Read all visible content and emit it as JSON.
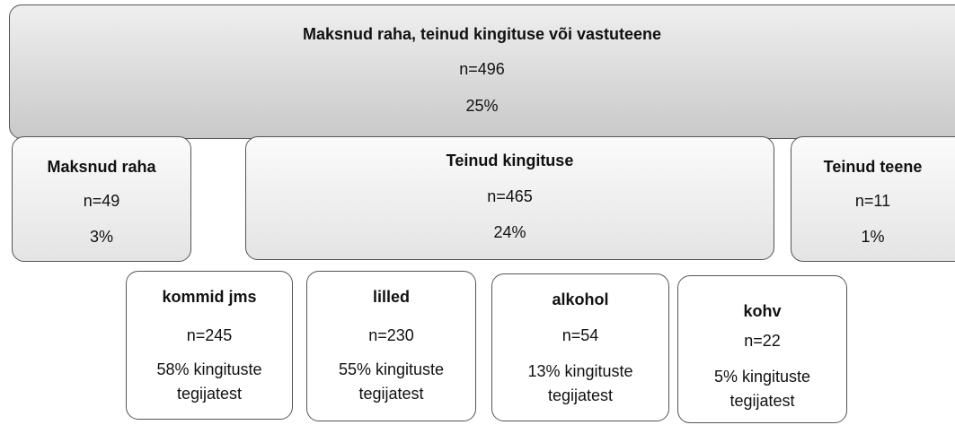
{
  "top": {
    "label": "Maksnud raha, teinud kingituse või vastuteene",
    "n": "n=496",
    "pct": "25%"
  },
  "middle": [
    {
      "label": "Maksnud raha",
      "n": "n=49",
      "pct": "3%"
    },
    {
      "label": "Teinud kingituse",
      "n": "n=465",
      "pct": "24%"
    },
    {
      "label": "Teinud teene",
      "n": "n=11",
      "pct": "1%"
    }
  ],
  "bottom": [
    {
      "label": "kommid jms",
      "n": "n=245",
      "pct": "58% kingituste tegijatest"
    },
    {
      "label": "lilled",
      "n": "n=230",
      "pct": "55% kingituste tegijatest"
    },
    {
      "label": "alkohol",
      "n": "n=54",
      "pct": "13% kingituste tegijatest"
    },
    {
      "label": "kohv",
      "n": "n=22",
      "pct": "5% kingituste tegijatest"
    }
  ]
}
